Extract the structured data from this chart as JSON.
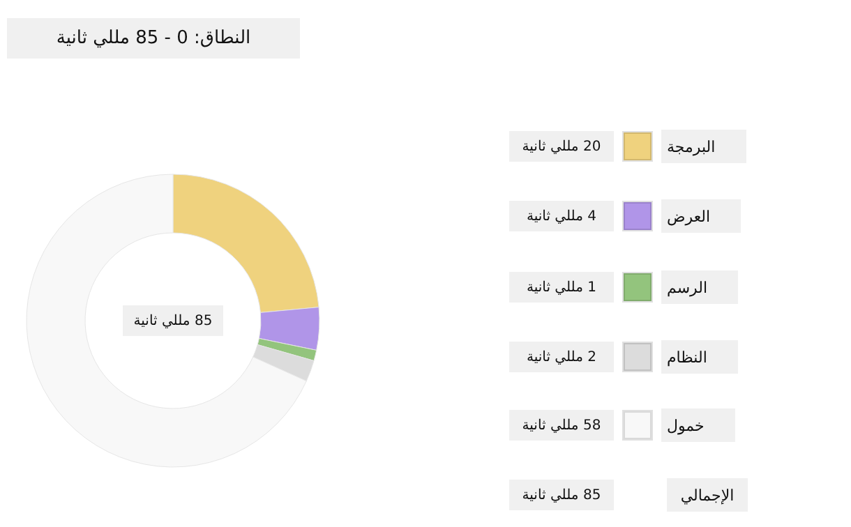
{
  "chart_data": {
    "type": "donut",
    "title": "النطاق: 0 - 85 مللي ثانية",
    "categories": [
      "البرمجة",
      "العرض",
      "الرسم",
      "النظام",
      "خمول"
    ],
    "values": [
      20,
      4,
      1,
      2,
      58
    ],
    "value_labels": [
      "20 مللي ثانية",
      "4 مللي ثانية",
      "1 مللي ثانية",
      "2 مللي ثانية",
      "58 مللي ثانية"
    ],
    "colors": [
      "#efd27e",
      "#b095e8",
      "#93c47d",
      "#dcdcdc",
      "#f8f8f8"
    ],
    "legend": "right",
    "annotations": [
      "85 مللي ثانية",
      "الإجمالي",
      "85 مللي ثانية"
    ]
  }
}
